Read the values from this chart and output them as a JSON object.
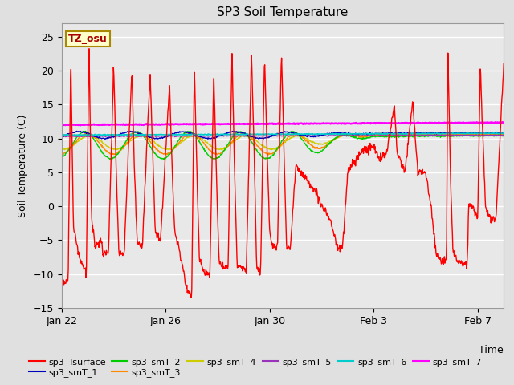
{
  "title": "SP3 Soil Temperature",
  "xlabel": "Time",
  "ylabel": "Soil Temperature (C)",
  "ylim": [
    -15,
    27
  ],
  "yticks": [
    -15,
    -10,
    -5,
    0,
    5,
    10,
    15,
    20,
    25
  ],
  "bg_color": "#e0e0e0",
  "plot_bg_color": "#e8e8e8",
  "annotation_text": "TZ_osu",
  "annotation_box_color": "#ffffcc",
  "annotation_box_edge": "#aa8800",
  "series_colors": {
    "sp3_Tsurface": "#ff0000",
    "sp3_smT_1": "#0000bb",
    "sp3_smT_2": "#00cc00",
    "sp3_smT_3": "#ff8800",
    "sp3_smT_4": "#cccc00",
    "sp3_smT_5": "#9933bb",
    "sp3_smT_6": "#00cccc",
    "sp3_smT_7": "#ff00ff"
  },
  "x_tick_labels": [
    "Jan 22",
    "Jan 26",
    "Jan 30",
    "Feb 3",
    "Feb 7"
  ],
  "x_tick_positions": [
    0,
    4,
    8,
    12,
    16
  ],
  "grid_color": "#ffffff",
  "legend_order": [
    "sp3_Tsurface",
    "sp3_smT_1",
    "sp3_smT_2",
    "sp3_smT_3",
    "sp3_smT_4",
    "sp3_smT_5",
    "sp3_smT_6",
    "sp3_smT_7"
  ]
}
